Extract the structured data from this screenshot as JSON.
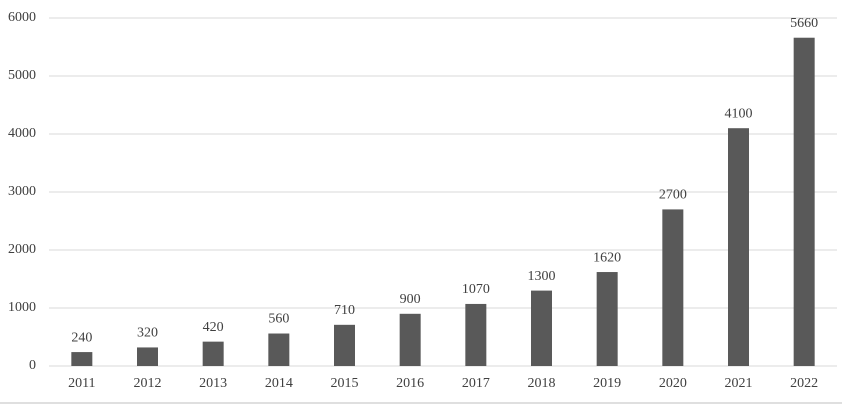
{
  "chart_data": {
    "type": "bar",
    "categories": [
      "2011",
      "2012",
      "2013",
      "2014",
      "2015",
      "2016",
      "2017",
      "2018",
      "2019",
      "2020",
      "2021",
      "2022"
    ],
    "values": [
      240,
      320,
      420,
      560,
      710,
      900,
      1070,
      1300,
      1620,
      2700,
      4100,
      5660
    ],
    "color": "#595959",
    "ylim": [
      0,
      6000
    ],
    "yticks": [
      0,
      1000,
      2000,
      3000,
      4000,
      5000,
      6000
    ],
    "grid": true
  }
}
